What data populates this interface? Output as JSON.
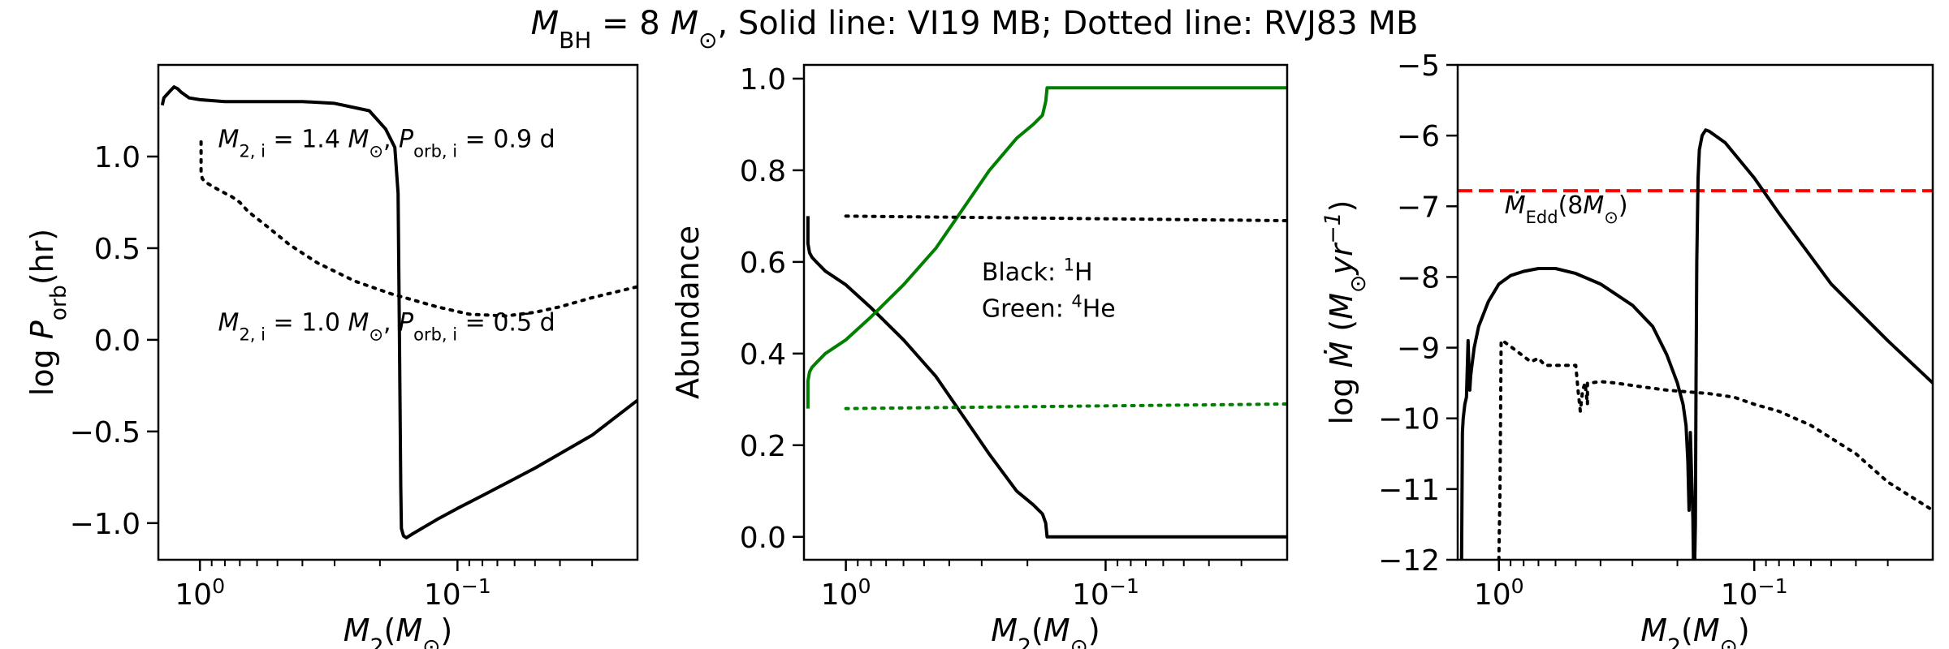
{
  "suptitle": {
    "parts": [
      {
        "t": "M",
        "style": "italic"
      },
      {
        "t": "BH",
        "sub": true
      },
      {
        "t": " = 8 "
      },
      {
        "t": "M",
        "style": "italic"
      },
      {
        "t": "⊙",
        "sub": true
      },
      {
        "t": ", Solid line: VI19 MB; Dotted line: RVJ83 MB"
      }
    ]
  },
  "colors": {
    "black": "#000000",
    "green": "#007f00",
    "red": "#ff0000"
  },
  "chart_data": [
    {
      "type": "line",
      "xscale": "log",
      "xaxis_reversed": true,
      "xlim": [
        1.45,
        0.02
      ],
      "ylim": [
        -1.2,
        1.5
      ],
      "xticks": [
        {
          "v": 1.0,
          "base": "10",
          "exp": "0"
        },
        {
          "v": 0.1,
          "base": "10",
          "exp": "−1"
        }
      ],
      "yticks": [
        {
          "v": 1.0,
          "label": "1.0"
        },
        {
          "v": 0.5,
          "label": "0.5"
        },
        {
          "v": 0.0,
          "label": "0.0"
        },
        {
          "v": -0.5,
          "label": "−0.5"
        },
        {
          "v": -1.0,
          "label": "−1.0"
        }
      ],
      "xlabel": [
        {
          "t": "M",
          "style": "italic"
        },
        {
          "t": "2",
          "sub": true
        },
        {
          "t": "("
        },
        {
          "t": "M",
          "style": "italic"
        },
        {
          "t": "⊙",
          "sub": true
        },
        {
          "t": ")"
        }
      ],
      "ylabel": [
        {
          "t": "log "
        },
        {
          "t": "P",
          "style": "italic"
        },
        {
          "t": "orb",
          "sub": true
        },
        {
          "t": "(hr)"
        }
      ],
      "annotations": [
        {
          "x": 0.85,
          "y": 1.05,
          "parts": [
            {
              "t": "M",
              "style": "italic"
            },
            {
              "t": "2, i",
              "sub": true
            },
            {
              "t": " = 1.4 "
            },
            {
              "t": "M",
              "style": "italic"
            },
            {
              "t": "⊙",
              "sub": true
            },
            {
              "t": ", "
            },
            {
              "t": "P",
              "style": "italic"
            },
            {
              "t": "orb, i",
              "sub": true
            },
            {
              "t": " = 0.9 d"
            }
          ]
        },
        {
          "x": 0.85,
          "y": 0.05,
          "parts": [
            {
              "t": "M",
              "style": "italic"
            },
            {
              "t": "2, i",
              "sub": true
            },
            {
              "t": " = 1.0 "
            },
            {
              "t": "M",
              "style": "italic"
            },
            {
              "t": "⊙",
              "sub": true
            },
            {
              "t": ", "
            },
            {
              "t": "P",
              "style": "italic"
            },
            {
              "t": "orb, i",
              "sub": true
            },
            {
              "t": " = 0.5 d"
            }
          ]
        }
      ],
      "series": [
        {
          "style": "solid",
          "color": "black",
          "x": [
            1.4,
            1.38,
            1.34,
            1.3,
            1.26,
            1.22,
            1.18,
            1.1,
            1.0,
            0.8,
            0.6,
            0.4,
            0.3,
            0.22,
            0.19,
            0.175,
            0.17,
            0.168,
            0.166,
            0.165,
            0.162,
            0.158,
            0.15,
            0.12,
            0.1,
            0.08,
            0.05,
            0.03,
            0.02
          ],
          "y": [
            1.28,
            1.32,
            1.34,
            1.36,
            1.38,
            1.37,
            1.35,
            1.32,
            1.31,
            1.3,
            1.3,
            1.3,
            1.29,
            1.25,
            1.15,
            1.05,
            0.8,
            0.0,
            -0.8,
            -1.03,
            -1.07,
            -1.08,
            -1.06,
            -0.98,
            -0.92,
            -0.85,
            -0.7,
            -0.52,
            -0.33
          ]
        },
        {
          "style": "dotted",
          "color": "black",
          "x": [
            0.99,
            0.99,
            0.98,
            0.95,
            0.9,
            0.85,
            0.8,
            0.75,
            0.7,
            0.65,
            0.55,
            0.45,
            0.35,
            0.25,
            0.18,
            0.12,
            0.09,
            0.065,
            0.05,
            0.04,
            0.03,
            0.02
          ],
          "y": [
            1.08,
            0.92,
            0.88,
            0.86,
            0.84,
            0.82,
            0.8,
            0.78,
            0.75,
            0.7,
            0.62,
            0.52,
            0.42,
            0.32,
            0.25,
            0.18,
            0.14,
            0.13,
            0.15,
            0.18,
            0.23,
            0.29
          ]
        }
      ]
    },
    {
      "type": "line",
      "xscale": "log",
      "xaxis_reversed": true,
      "xlim": [
        1.45,
        0.02
      ],
      "ylim": [
        -0.05,
        1.03
      ],
      "xticks": [
        {
          "v": 1.0,
          "base": "10",
          "exp": "0"
        },
        {
          "v": 0.1,
          "base": "10",
          "exp": "−1"
        }
      ],
      "yticks": [
        {
          "v": 0.0,
          "label": "0.0"
        },
        {
          "v": 0.2,
          "label": "0.2"
        },
        {
          "v": 0.4,
          "label": "0.4"
        },
        {
          "v": 0.6,
          "label": "0.6"
        },
        {
          "v": 0.8,
          "label": "0.8"
        },
        {
          "v": 1.0,
          "label": "1.0"
        }
      ],
      "xlabel": [
        {
          "t": "M",
          "style": "italic"
        },
        {
          "t": "2",
          "sub": true
        },
        {
          "t": "("
        },
        {
          "t": "M",
          "style": "italic"
        },
        {
          "t": "⊙",
          "sub": true
        },
        {
          "t": ")"
        }
      ],
      "ylabel": [
        {
          "t": "Abundance"
        }
      ],
      "annotations": [
        {
          "x": 0.3,
          "y": 0.56,
          "parts": [
            {
              "t": "Black: "
            },
            {
              "t": "1",
              "sup": true
            },
            {
              "t": "H"
            }
          ]
        },
        {
          "x": 0.3,
          "y": 0.48,
          "parts": [
            {
              "t": "Green: "
            },
            {
              "t": "4",
              "sup": true
            },
            {
              "t": "He"
            }
          ]
        }
      ],
      "series": [
        {
          "style": "solid",
          "color": "black",
          "x": [
            1.4,
            1.4,
            1.38,
            1.35,
            1.3,
            1.2,
            1.0,
            0.8,
            0.6,
            0.45,
            0.35,
            0.28,
            0.22,
            0.19,
            0.175,
            0.17,
            0.168,
            0.165,
            0.16,
            0.1,
            0.05,
            0.02
          ],
          "y": [
            0.7,
            0.64,
            0.62,
            0.61,
            0.6,
            0.58,
            0.55,
            0.5,
            0.43,
            0.35,
            0.26,
            0.18,
            0.1,
            0.07,
            0.05,
            0.03,
            0.0,
            0.0,
            0.0,
            0.0,
            0.0,
            0.0
          ]
        },
        {
          "style": "solid",
          "color": "green",
          "x": [
            1.4,
            1.4,
            1.38,
            1.35,
            1.3,
            1.2,
            1.0,
            0.8,
            0.6,
            0.45,
            0.35,
            0.28,
            0.22,
            0.19,
            0.175,
            0.17,
            0.168,
            0.165,
            0.16,
            0.1,
            0.05,
            0.02
          ],
          "y": [
            0.28,
            0.34,
            0.36,
            0.37,
            0.38,
            0.4,
            0.43,
            0.48,
            0.55,
            0.63,
            0.72,
            0.8,
            0.87,
            0.9,
            0.92,
            0.95,
            0.98,
            0.98,
            0.98,
            0.98,
            0.98,
            0.98
          ]
        },
        {
          "style": "dotted",
          "color": "black",
          "x": [
            1.0,
            0.02
          ],
          "y": [
            0.7,
            0.69
          ]
        },
        {
          "style": "dotted",
          "color": "green",
          "x": [
            1.0,
            0.02
          ],
          "y": [
            0.28,
            0.29
          ]
        }
      ]
    },
    {
      "type": "line",
      "xscale": "log",
      "xaxis_reversed": true,
      "xlim": [
        1.45,
        0.02
      ],
      "ylim": [
        -12,
        -5
      ],
      "xticks": [
        {
          "v": 1.0,
          "base": "10",
          "exp": "0"
        },
        {
          "v": 0.1,
          "base": "10",
          "exp": "−1"
        }
      ],
      "yticks": [
        {
          "v": -5,
          "label": "−5"
        },
        {
          "v": -6,
          "label": "−6"
        },
        {
          "v": -7,
          "label": "−7"
        },
        {
          "v": -8,
          "label": "−8"
        },
        {
          "v": -9,
          "label": "−9"
        },
        {
          "v": -10,
          "label": "−10"
        },
        {
          "v": -11,
          "label": "−11"
        },
        {
          "v": -12,
          "label": "−12"
        }
      ],
      "xlabel": [
        {
          "t": "M",
          "style": "italic"
        },
        {
          "t": "2",
          "sub": true
        },
        {
          "t": "("
        },
        {
          "t": "M",
          "style": "italic"
        },
        {
          "t": "⊙",
          "sub": true
        },
        {
          "t": ")"
        }
      ],
      "ylabel": [
        {
          "t": "log "
        },
        {
          "t": "Ṁ",
          "style": "italic"
        },
        {
          "t": " ("
        },
        {
          "t": "M",
          "style": "italic"
        },
        {
          "t": "⊙",
          "sub": true
        },
        {
          "t": "yr",
          "style": "italic"
        },
        {
          "t": "−1",
          "sup": true,
          "style": "italic"
        },
        {
          "t": ")"
        }
      ],
      "annotations": [
        {
          "x": 0.95,
          "y": -7.1,
          "parts": [
            {
              "t": "Ṁ",
              "style": "italic"
            },
            {
              "t": "Edd",
              "sub": true
            },
            {
              "t": "(8"
            },
            {
              "t": "M",
              "style": "italic"
            },
            {
              "t": "⊙",
              "sub": true
            },
            {
              "t": ")"
            }
          ]
        }
      ],
      "hline": {
        "y": -6.78,
        "style": "dashed",
        "color": "red"
      },
      "series": [
        {
          "style": "solid",
          "color": "black",
          "x": [
            1.4,
            1.39,
            1.38,
            1.36,
            1.34,
            1.33,
            1.32,
            1.31,
            1.3,
            1.29,
            1.28,
            1.25,
            1.2,
            1.1,
            1.0,
            0.9,
            0.8,
            0.7,
            0.6,
            0.5,
            0.4,
            0.3,
            0.25,
            0.22,
            0.2,
            0.19,
            0.185,
            0.182,
            0.18,
            0.178,
            0.176,
            0.174,
            0.173,
            0.172,
            0.171,
            0.17,
            0.169,
            0.168,
            0.166,
            0.164,
            0.16,
            0.155,
            0.15,
            0.13,
            0.1,
            0.08,
            0.05,
            0.03,
            0.02
          ],
          "y": [
            -12.0,
            -10.2,
            -10.0,
            -9.8,
            -9.7,
            -9.3,
            -8.9,
            -9.3,
            -9.6,
            -9.4,
            -9.3,
            -9.0,
            -8.7,
            -8.35,
            -8.1,
            -7.98,
            -7.92,
            -7.88,
            -7.88,
            -7.95,
            -8.1,
            -8.4,
            -8.7,
            -9.1,
            -9.5,
            -9.8,
            -10.1,
            -10.6,
            -11.3,
            -10.2,
            -10.8,
            -11.4,
            -12.0,
            -11.6,
            -12.0,
            -11.5,
            -9.5,
            -7.8,
            -6.6,
            -6.2,
            -6.0,
            -5.92,
            -5.94,
            -6.1,
            -6.6,
            -7.1,
            -8.1,
            -8.9,
            -9.5
          ]
        },
        {
          "style": "dotted",
          "color": "black",
          "x": [
            1.0,
            0.99,
            0.98,
            0.95,
            0.85,
            0.75,
            0.7,
            0.66,
            0.6,
            0.55,
            0.5,
            0.49,
            0.48,
            0.47,
            0.46,
            0.45,
            0.45,
            0.44,
            0.4,
            0.35,
            0.28,
            0.22,
            0.15,
            0.12,
            0.1,
            0.08,
            0.06,
            0.04,
            0.03,
            0.02
          ],
          "y": [
            -12.0,
            -11.0,
            -8.9,
            -8.92,
            -9.05,
            -9.2,
            -9.15,
            -9.25,
            -9.25,
            -9.25,
            -9.25,
            -9.6,
            -9.9,
            -9.6,
            -9.5,
            -9.8,
            -9.5,
            -9.5,
            -9.48,
            -9.5,
            -9.55,
            -9.6,
            -9.65,
            -9.7,
            -9.8,
            -9.9,
            -10.1,
            -10.5,
            -10.9,
            -11.3
          ]
        }
      ]
    }
  ]
}
